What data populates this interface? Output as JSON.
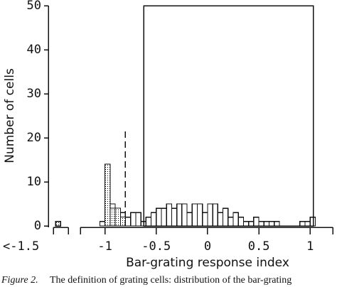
{
  "chart_data": {
    "type": "histogram",
    "xlabel": "Bar-grating response index",
    "ylabel": "Number of cells",
    "caption_label": "Figure 2.",
    "caption": "The definition of grating cells: distribution of the bar-grating",
    "bins": [
      -1.05,
      -1.0,
      -0.95,
      -0.9,
      -0.85,
      -0.8,
      -0.75,
      -0.7,
      -0.65,
      -0.6,
      -0.55,
      -0.5,
      -0.45,
      -0.4,
      -0.35,
      -0.3,
      -0.25,
      -0.2,
      -0.15,
      -0.1,
      -0.05,
      0,
      0.05,
      0.1,
      0.15,
      0.2,
      0.25,
      0.3,
      0.35,
      0.4,
      0.45,
      0.5,
      0.55,
      0.6,
      0.65,
      0.7,
      0.75,
      0.8,
      0.85,
      0.9,
      0.95,
      1.0,
      1.05
    ],
    "series": [
      {
        "values": [
          1,
          14,
          5,
          4,
          3,
          2,
          3,
          3,
          1,
          2,
          3,
          4,
          4,
          5,
          4,
          5,
          5,
          3,
          5,
          5,
          3,
          5,
          5,
          3,
          4,
          2,
          3,
          2,
          1,
          1,
          2,
          1,
          1,
          1,
          1,
          0,
          0,
          0,
          0,
          1,
          1,
          2
        ]
      },
      {
        "values": [
          0,
          14,
          4,
          4,
          2,
          0,
          0,
          0,
          0,
          0,
          0,
          0,
          0,
          0,
          0,
          0,
          0,
          0,
          0,
          0,
          0,
          0,
          0,
          0,
          0,
          0,
          0,
          0,
          0,
          0,
          0,
          0,
          0,
          0,
          0,
          0,
          0,
          0,
          0,
          0,
          0,
          0
        ]
      }
    ],
    "outlier_label": "<-1.5",
    "outlier_value": 1,
    "threshold": -0.8,
    "box": {
      "x": [
        -0.62,
        1.03
      ],
      "height": 50
    },
    "xlim": [
      -1.24,
      1.22
    ],
    "xticks": [
      -1,
      -0.5,
      0,
      0.5,
      1
    ],
    "ylim": [
      0,
      50
    ],
    "yticks": [
      0,
      10,
      20,
      30,
      40,
      50
    ]
  }
}
